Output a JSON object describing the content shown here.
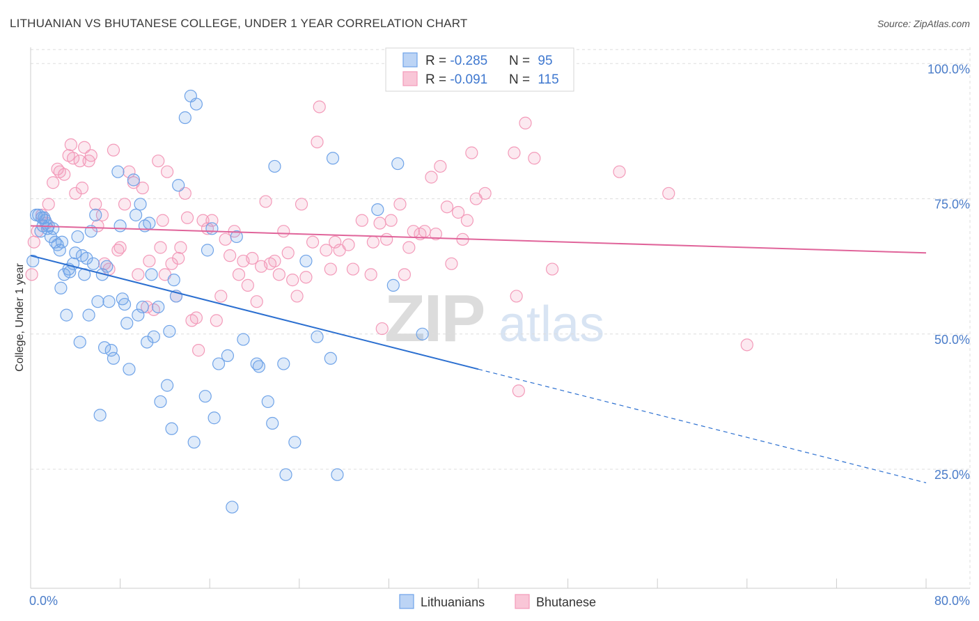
{
  "chart_data": {
    "type": "scatter",
    "title": "LITHUANIAN VS BHUTANESE COLLEGE, UNDER 1 YEAR CORRELATION CHART",
    "source": "Source: ZipAtlas.com",
    "ylabel": "College, Under 1 year",
    "xlim": [
      0,
      80
    ],
    "ylim": [
      3,
      103
    ],
    "x_tick_labels": [
      "0.0%",
      "80.0%"
    ],
    "y_ticks": [
      25,
      50,
      75,
      100
    ],
    "y_tick_labels": [
      "25.0%",
      "50.0%",
      "75.0%",
      "100.0%"
    ],
    "grid": true,
    "legend_position": "top-center",
    "watermark": {
      "zip": "ZIP",
      "atlas": "atlas"
    },
    "series": [
      {
        "name": "Lithuanians",
        "color": "#6fa3e8",
        "line_color": "#2b6fd0",
        "r_label": "R = ",
        "r_value": "-0.285",
        "n_label": "N = ",
        "n_value": "95",
        "trend": {
          "x0": 0,
          "y0": 64.5,
          "x1": 40,
          "y1": 43.5,
          "dash_to_x": 80,
          "dash_to_y": 22.5
        },
        "points": [
          [
            0.2,
            63.5
          ],
          [
            0.5,
            72
          ],
          [
            0.7,
            72
          ],
          [
            0.9,
            69
          ],
          [
            1.0,
            71.5
          ],
          [
            1.1,
            70
          ],
          [
            1.2,
            71.5
          ],
          [
            1.3,
            71
          ],
          [
            1.5,
            69.5
          ],
          [
            1.6,
            70
          ],
          [
            1.8,
            68
          ],
          [
            2.0,
            69.5
          ],
          [
            2.2,
            67
          ],
          [
            2.4,
            66.5
          ],
          [
            2.6,
            65.5
          ],
          [
            2.7,
            58.5
          ],
          [
            2.8,
            67
          ],
          [
            3.0,
            61
          ],
          [
            3.2,
            53.5
          ],
          [
            3.4,
            62
          ],
          [
            3.5,
            61.5
          ],
          [
            3.8,
            63
          ],
          [
            4.0,
            65
          ],
          [
            4.2,
            68
          ],
          [
            4.4,
            48.5
          ],
          [
            4.6,
            64.5
          ],
          [
            4.8,
            61
          ],
          [
            5.0,
            64
          ],
          [
            5.2,
            53.5
          ],
          [
            5.4,
            69
          ],
          [
            5.6,
            63
          ],
          [
            5.8,
            72
          ],
          [
            6.0,
            56
          ],
          [
            6.2,
            35
          ],
          [
            6.4,
            61
          ],
          [
            6.6,
            47.5
          ],
          [
            6.8,
            62.5
          ],
          [
            7.0,
            56
          ],
          [
            7.2,
            47
          ],
          [
            7.4,
            45.5
          ],
          [
            7.8,
            80
          ],
          [
            8.0,
            70
          ],
          [
            8.2,
            56.5
          ],
          [
            8.4,
            55.5
          ],
          [
            8.6,
            52
          ],
          [
            8.8,
            43.5
          ],
          [
            9.2,
            78.5
          ],
          [
            9.4,
            72
          ],
          [
            9.6,
            53.5
          ],
          [
            9.8,
            74
          ],
          [
            10.0,
            55
          ],
          [
            10.2,
            70
          ],
          [
            10.4,
            48.5
          ],
          [
            10.6,
            70.5
          ],
          [
            10.8,
            61
          ],
          [
            11.0,
            49.5
          ],
          [
            11.4,
            55
          ],
          [
            11.6,
            37.5
          ],
          [
            12.2,
            40.5
          ],
          [
            12.4,
            50.5
          ],
          [
            12.6,
            32.5
          ],
          [
            12.8,
            60
          ],
          [
            13.0,
            57
          ],
          [
            13.2,
            77.5
          ],
          [
            13.8,
            90
          ],
          [
            14.3,
            94
          ],
          [
            14.6,
            30
          ],
          [
            14.8,
            92.5
          ],
          [
            15.6,
            38.5
          ],
          [
            15.8,
            65.5
          ],
          [
            16.2,
            69.5
          ],
          [
            16.4,
            34.5
          ],
          [
            16.8,
            44.5
          ],
          [
            17.6,
            46
          ],
          [
            18.0,
            18
          ],
          [
            18.4,
            68
          ],
          [
            19.0,
            49
          ],
          [
            20.2,
            44.5
          ],
          [
            20.4,
            44
          ],
          [
            21.2,
            37.5
          ],
          [
            21.6,
            33.5
          ],
          [
            21.8,
            81
          ],
          [
            22.6,
            44.5
          ],
          [
            22.8,
            24
          ],
          [
            23.6,
            30
          ],
          [
            24.6,
            63.5
          ],
          [
            25.6,
            49.5
          ],
          [
            26.8,
            45.5
          ],
          [
            27.0,
            82.5
          ],
          [
            27.4,
            24
          ],
          [
            31.0,
            73
          ],
          [
            32.4,
            59
          ],
          [
            32.8,
            81.5
          ],
          [
            35.0,
            50
          ]
        ]
      },
      {
        "name": "Bhutanese",
        "color": "#f39ab9",
        "line_color": "#e0649a",
        "r_label": "R = ",
        "r_value": "-0.091",
        "n_label": "N = ",
        "n_value": "115",
        "trend": {
          "x0": 0,
          "y0": 70,
          "x1": 80,
          "y1": 65
        },
        "points": [
          [
            0.1,
            61
          ],
          [
            0.3,
            67
          ],
          [
            0.6,
            69
          ],
          [
            1.0,
            72
          ],
          [
            1.4,
            70.5
          ],
          [
            1.6,
            74
          ],
          [
            2.0,
            78
          ],
          [
            2.4,
            80.5
          ],
          [
            2.6,
            80
          ],
          [
            3.0,
            79.5
          ],
          [
            3.4,
            83
          ],
          [
            3.6,
            85
          ],
          [
            3.8,
            82.5
          ],
          [
            4.0,
            76
          ],
          [
            4.4,
            82
          ],
          [
            4.6,
            77
          ],
          [
            4.8,
            84.5
          ],
          [
            5.2,
            82
          ],
          [
            5.4,
            83
          ],
          [
            5.8,
            74
          ],
          [
            6.0,
            70
          ],
          [
            6.4,
            72
          ],
          [
            6.6,
            63
          ],
          [
            7.0,
            62
          ],
          [
            7.4,
            84
          ],
          [
            7.8,
            65.5
          ],
          [
            8.0,
            66
          ],
          [
            8.4,
            74
          ],
          [
            8.8,
            80
          ],
          [
            9.2,
            78
          ],
          [
            9.6,
            61
          ],
          [
            10.0,
            77
          ],
          [
            10.4,
            55
          ],
          [
            10.6,
            63.5
          ],
          [
            11.0,
            54.5
          ],
          [
            11.4,
            82
          ],
          [
            11.6,
            66
          ],
          [
            11.8,
            71
          ],
          [
            12.0,
            61
          ],
          [
            12.2,
            80
          ],
          [
            12.6,
            63
          ],
          [
            13.0,
            57
          ],
          [
            13.2,
            64
          ],
          [
            13.4,
            66
          ],
          [
            13.8,
            76
          ],
          [
            14.0,
            71.5
          ],
          [
            14.4,
            52.5
          ],
          [
            14.8,
            53
          ],
          [
            15.0,
            47
          ],
          [
            15.4,
            71
          ],
          [
            15.8,
            69.5
          ],
          [
            16.2,
            71
          ],
          [
            16.6,
            52.5
          ],
          [
            17.0,
            57
          ],
          [
            17.4,
            67.5
          ],
          [
            17.8,
            64.5
          ],
          [
            18.2,
            69
          ],
          [
            18.6,
            61
          ],
          [
            19.0,
            63.5
          ],
          [
            19.4,
            59
          ],
          [
            19.8,
            64
          ],
          [
            20.2,
            56
          ],
          [
            20.6,
            62.5
          ],
          [
            21.0,
            74.5
          ],
          [
            21.4,
            63
          ],
          [
            21.8,
            63.5
          ],
          [
            22.2,
            61
          ],
          [
            22.6,
            69
          ],
          [
            23.0,
            65
          ],
          [
            23.4,
            60
          ],
          [
            23.8,
            57
          ],
          [
            24.2,
            74
          ],
          [
            24.6,
            60.5
          ],
          [
            25.2,
            67
          ],
          [
            25.6,
            85.5
          ],
          [
            25.8,
            92
          ],
          [
            26.4,
            65.5
          ],
          [
            26.8,
            62
          ],
          [
            27.2,
            67
          ],
          [
            27.6,
            65.5
          ],
          [
            28.4,
            66.5
          ],
          [
            28.8,
            62
          ],
          [
            29.6,
            71
          ],
          [
            30.4,
            61
          ],
          [
            30.6,
            67
          ],
          [
            31.2,
            70.5
          ],
          [
            31.4,
            51
          ],
          [
            31.8,
            67.5
          ],
          [
            32.2,
            71
          ],
          [
            33.0,
            74
          ],
          [
            33.4,
            61
          ],
          [
            33.8,
            66
          ],
          [
            34.2,
            69
          ],
          [
            34.8,
            68.5
          ],
          [
            35.2,
            69
          ],
          [
            35.8,
            79
          ],
          [
            36.2,
            68.5
          ],
          [
            36.6,
            81
          ],
          [
            37.2,
            73.5
          ],
          [
            37.6,
            63
          ],
          [
            38.2,
            72.5
          ],
          [
            38.6,
            67.5
          ],
          [
            39.0,
            71
          ],
          [
            39.4,
            83.5
          ],
          [
            39.8,
            75
          ],
          [
            40.6,
            76
          ],
          [
            43.2,
            83.5
          ],
          [
            43.4,
            57
          ],
          [
            43.6,
            39.5
          ],
          [
            44.2,
            89
          ],
          [
            45.0,
            82.5
          ],
          [
            46.6,
            62
          ],
          [
            52.6,
            80
          ],
          [
            57.0,
            76
          ],
          [
            64.0,
            48
          ]
        ]
      }
    ]
  }
}
